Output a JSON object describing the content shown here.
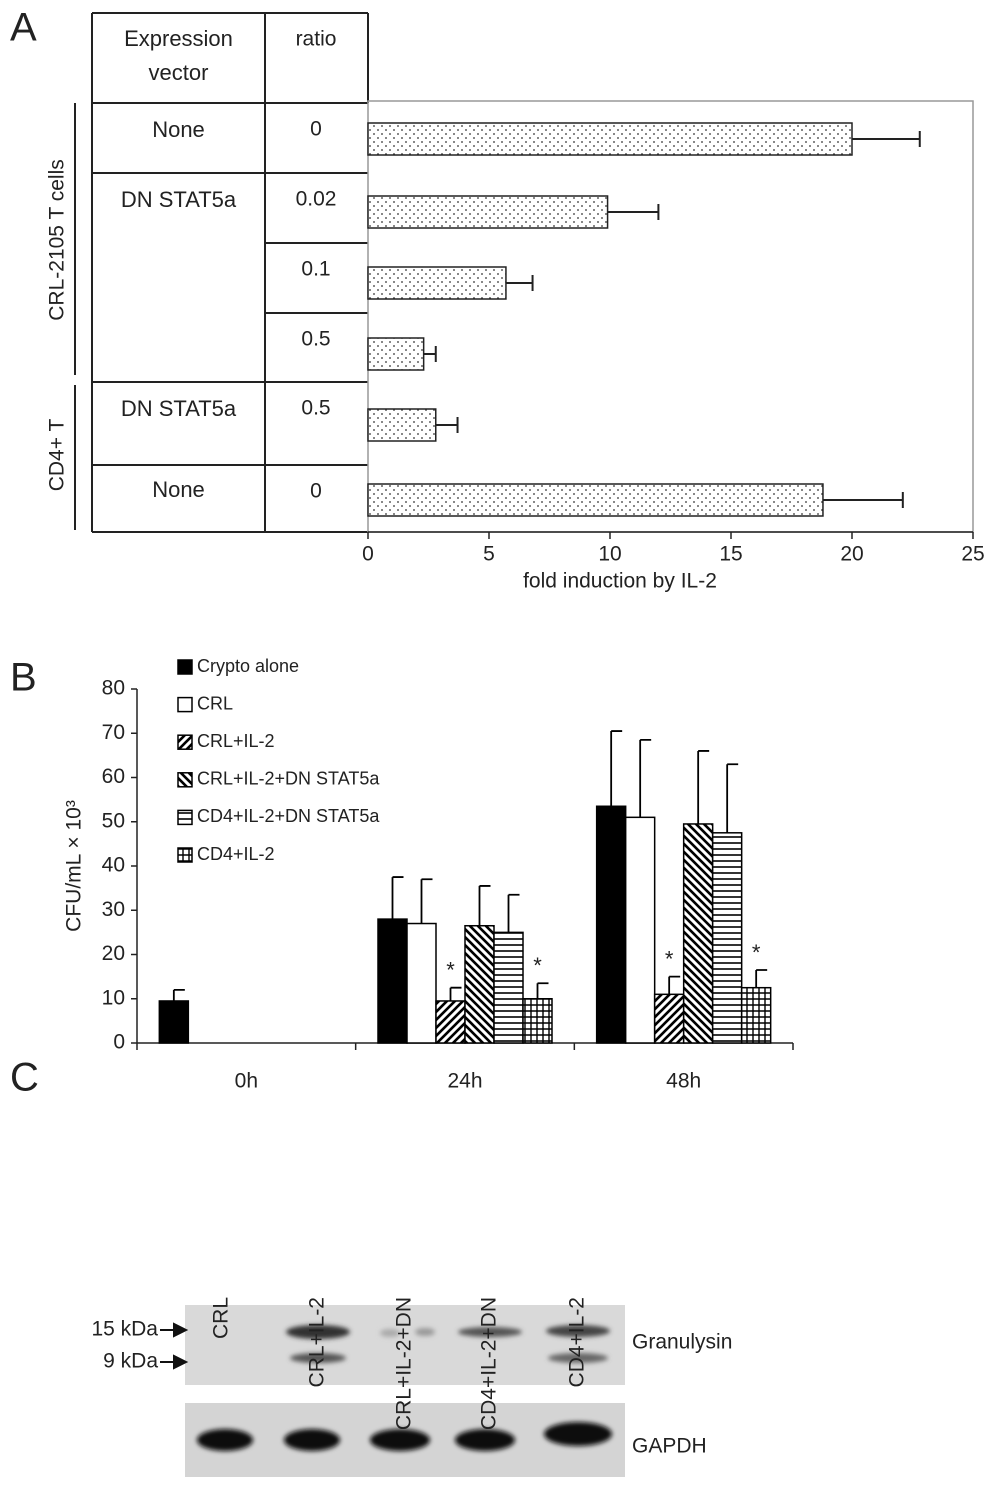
{
  "panel_labels": [
    "A",
    "B",
    "C"
  ],
  "chart_data": [
    {
      "type": "bar",
      "orientation": "horizontal",
      "table": {
        "headers": [
          "Expression vector",
          "ratio"
        ],
        "vectors": [
          "None",
          "DN STAT5a",
          "DN STAT5a",
          "None"
        ],
        "groups": [
          "CRL-2105 T cells",
          "CD4+ T"
        ]
      },
      "categories": [
        "0",
        "0.02",
        "0.1",
        "0.5",
        "0.5",
        "0"
      ],
      "values": [
        20,
        9.9,
        5.7,
        2.3,
        2.8,
        18.8
      ],
      "errors": [
        2.8,
        2.1,
        1.1,
        0.5,
        0.9,
        3.3
      ],
      "pattern": "dots",
      "xlabel": "fold induction by IL-2",
      "xlim": [
        0,
        25
      ],
      "xticks": [
        0,
        5,
        10,
        15,
        20,
        25
      ]
    },
    {
      "type": "grouped-bar",
      "ylabel": "CFU/mL × 10³",
      "categories": [
        "0h",
        "24h",
        "48h"
      ],
      "series": [
        {
          "name": "Crypto alone",
          "color": "#000000",
          "pattern": "solid",
          "values": [
            9.5,
            28,
            53.5
          ],
          "errors": [
            2.5,
            9.5,
            17
          ],
          "significance": [
            null,
            null,
            null
          ]
        },
        {
          "name": "CRL",
          "color": "#ffffff",
          "pattern": "solid",
          "values": [
            null,
            27,
            51
          ],
          "errors": [
            null,
            10,
            17.5
          ],
          "significance": [
            null,
            null,
            null
          ]
        },
        {
          "name": "CRL+IL-2",
          "color": "#000000",
          "pattern": "diagonal-up",
          "values": [
            null,
            9.5,
            11
          ],
          "errors": [
            null,
            3,
            4
          ],
          "significance": [
            null,
            "*",
            "*"
          ]
        },
        {
          "name": "CRL+IL-2+DN STAT5a",
          "color": "#000000",
          "pattern": "diagonal-down",
          "values": [
            null,
            26.5,
            49.5
          ],
          "errors": [
            null,
            9,
            16.5
          ],
          "significance": [
            null,
            null,
            null
          ]
        },
        {
          "name": "CD4+IL-2+DN STAT5a",
          "color": "#000000",
          "pattern": "horizontal",
          "values": [
            null,
            25,
            47.5
          ],
          "errors": [
            null,
            8.5,
            15.5
          ],
          "significance": [
            null,
            null,
            null
          ]
        },
        {
          "name": "CD4+IL-2",
          "color": "#000000",
          "pattern": "grid",
          "values": [
            null,
            10,
            12.5
          ],
          "errors": [
            null,
            3.5,
            4
          ],
          "significance": [
            null,
            "*",
            "*"
          ]
        }
      ],
      "ylim": [
        0,
        80
      ],
      "yticks": [
        0,
        10,
        20,
        30,
        40,
        50,
        60,
        70,
        80
      ],
      "legend": "top-left"
    }
  ],
  "blot": {
    "lanes": [
      "CRL",
      "CRL+IL-2",
      "CRL+IL-2+DN",
      "CD4+IL-2+DN",
      "CD4+IL-2"
    ],
    "markers": [
      "15 kDa",
      "9 kDa"
    ],
    "proteins": [
      "Granulysin",
      "GAPDH"
    ]
  }
}
